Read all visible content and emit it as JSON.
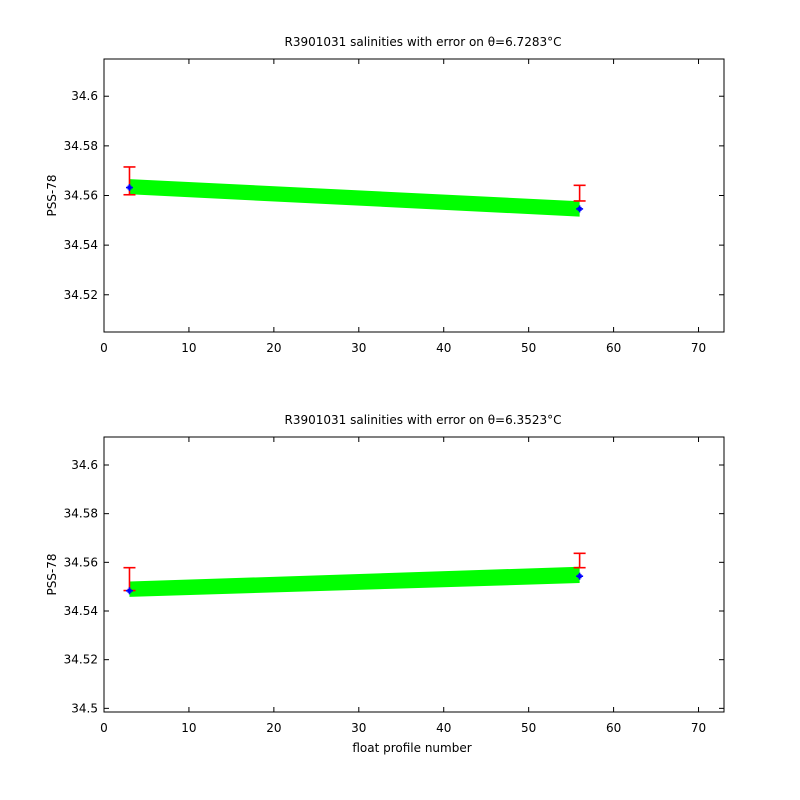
{
  "colors": {
    "band": "#00ff00",
    "error_bar": "#ff0000",
    "marker": "#0000ff",
    "axes": "#000000"
  },
  "chart_data": [
    {
      "type": "line",
      "title": "R3901031 salinities with error on θ=6.7283°C",
      "xlabel": "",
      "ylabel": "PSS-78",
      "xlim": [
        0,
        73
      ],
      "ylim": [
        34.505,
        34.615
      ],
      "xticks": [
        0,
        10,
        20,
        30,
        40,
        50,
        60,
        70
      ],
      "yticks": [
        34.52,
        34.54,
        34.56,
        34.58,
        34.6
      ],
      "ytick_labels": [
        "34.52",
        "34.54",
        "34.56",
        "34.58",
        "34.6"
      ],
      "grid": false,
      "band": {
        "x": [
          3,
          56
        ],
        "upper": [
          34.5666,
          34.5577
        ],
        "lower": [
          34.5605,
          34.5515
        ]
      },
      "points": {
        "x": [
          3,
          56
        ],
        "y": [
          34.5632,
          34.5546
        ]
      },
      "error_bars": {
        "x": [
          3,
          56
        ],
        "upper": [
          34.5715,
          34.5641
        ],
        "lower": [
          34.5603,
          34.5578
        ]
      }
    },
    {
      "type": "line",
      "title": "R3901031 salinities with error on θ=6.3523°C",
      "xlabel": "float profile number",
      "ylabel": "PSS-78",
      "xlim": [
        0,
        73
      ],
      "ylim": [
        34.4985,
        34.6115
      ],
      "xticks": [
        0,
        10,
        20,
        30,
        40,
        50,
        60,
        70
      ],
      "yticks": [
        34.5,
        34.52,
        34.54,
        34.56,
        34.58,
        34.6
      ],
      "ytick_labels": [
        "34.5",
        "34.52",
        "34.54",
        "34.56",
        "34.58",
        "34.6"
      ],
      "grid": false,
      "band": {
        "x": [
          3,
          56
        ],
        "upper": [
          34.5521,
          34.5582
        ],
        "lower": [
          34.5458,
          34.5515
        ]
      },
      "points": {
        "x": [
          3,
          56
        ],
        "y": [
          34.5483,
          34.5543
        ]
      },
      "error_bars": {
        "x": [
          3,
          56
        ],
        "upper": [
          34.5578,
          34.5637
        ],
        "lower": [
          34.5484,
          34.5578
        ]
      }
    }
  ]
}
